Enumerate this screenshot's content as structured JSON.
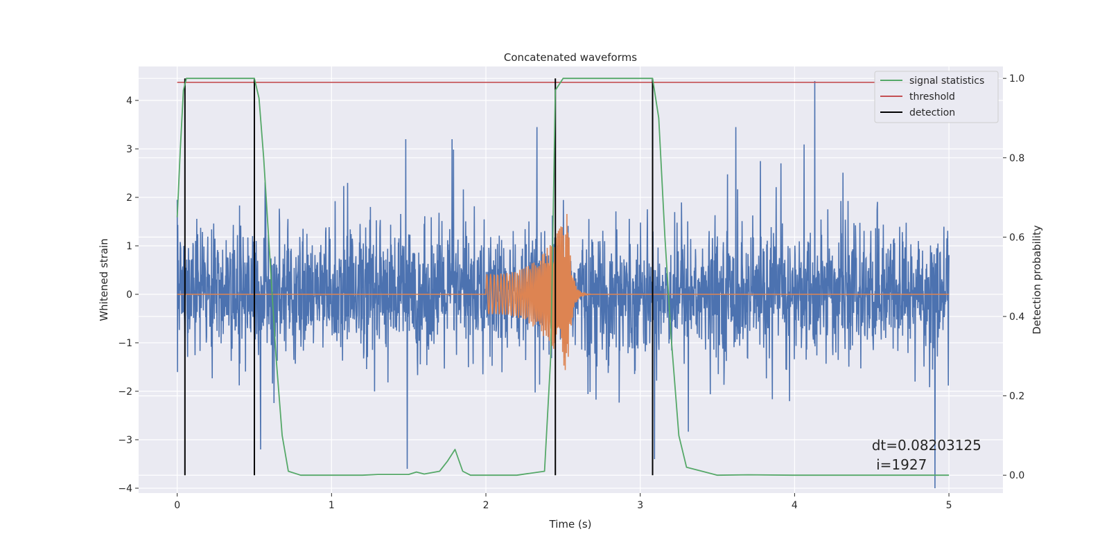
{
  "chart_data": {
    "type": "line",
    "title": "Concatenated waveforms",
    "xlabel": "Time (s)",
    "ylabel": "Whitened strain",
    "y2label": "Detection probability",
    "xlim": [
      -0.25,
      5.35
    ],
    "ylim": [
      -4.1,
      4.7
    ],
    "y2lim": [
      -0.045,
      1.03
    ],
    "xticks": [
      0,
      1,
      2,
      3,
      4,
      5
    ],
    "yticks": [
      -4,
      -3,
      -2,
      -1,
      0,
      1,
      2,
      3,
      4
    ],
    "y2ticks": [
      0.0,
      0.2,
      0.4,
      0.6,
      0.8,
      1.0
    ],
    "y2ticklabels": [
      "0.0",
      "0.2",
      "0.4",
      "0.6",
      "0.8",
      "1.0"
    ],
    "ytick_labels": [
      "−4",
      "−3",
      "−2",
      "−1",
      "0",
      "1",
      "2",
      "3",
      "4"
    ],
    "grid": true,
    "legend_position": "top-right",
    "series": [
      {
        "name": "",
        "color": "#4c72b0",
        "axis": "left",
        "kind": "noise",
        "x_range": [
          0,
          5
        ],
        "amplitude": 1.0,
        "notable_peaks": [
          [
            0.0,
            1.95
          ],
          [
            0.54,
            -3.2
          ],
          [
            1.48,
            3.2
          ],
          [
            1.78,
            3.2
          ],
          [
            2.33,
            3.45
          ],
          [
            3.62,
            3.45
          ],
          [
            4.13,
            4.4
          ],
          [
            4.91,
            -4.0
          ],
          [
            1.49,
            -3.6
          ]
        ]
      },
      {
        "name": "",
        "color": "#dd8452",
        "axis": "left",
        "kind": "chirp",
        "start": 2.0,
        "merger": 2.53,
        "end": 5.0,
        "peak_amplitude": 1.7
      },
      {
        "name": "signal statistics",
        "color": "#55a868",
        "axis": "right",
        "x": [
          0.0,
          0.02,
          0.04,
          0.06,
          0.1,
          0.2,
          0.3,
          0.45,
          0.5,
          0.53,
          0.56,
          0.6,
          0.64,
          0.68,
          0.72,
          0.8,
          1.0,
          1.2,
          1.3,
          1.5,
          1.55,
          1.6,
          1.7,
          1.75,
          1.8,
          1.85,
          1.9,
          2.0,
          2.2,
          2.38,
          2.42,
          2.45,
          2.5,
          2.6,
          3.0,
          3.08,
          3.12,
          3.16,
          3.2,
          3.25,
          3.3,
          3.5,
          3.7,
          4.0,
          5.0
        ],
        "y": [
          0.65,
          0.82,
          0.97,
          1.0,
          1.0,
          1.0,
          1.0,
          1.0,
          1.0,
          0.95,
          0.8,
          0.55,
          0.3,
          0.1,
          0.01,
          0.0,
          0.0,
          0.0,
          0.002,
          0.002,
          0.008,
          0.003,
          0.01,
          0.035,
          0.065,
          0.01,
          0.0,
          0.0,
          0.0,
          0.01,
          0.3,
          0.97,
          1.0,
          1.0,
          1.0,
          1.0,
          0.9,
          0.6,
          0.35,
          0.1,
          0.02,
          0.0,
          0.001,
          0.0,
          0.0
        ]
      },
      {
        "name": "threshold",
        "color": "#c44e52",
        "axis": "right",
        "x": [
          0.0,
          5.0
        ],
        "y": [
          0.99,
          0.99
        ]
      },
      {
        "name": "detection",
        "color": "#000000",
        "axis": "right",
        "kind": "vlines",
        "x": [
          0.05,
          0.5,
          2.45,
          3.08
        ],
        "ymin": 0.0,
        "ymax": 1.0
      }
    ],
    "annotation": {
      "line1": "dt=0.08203125",
      "line2": " i=1927",
      "x": 4.5,
      "y": -3.3
    }
  }
}
